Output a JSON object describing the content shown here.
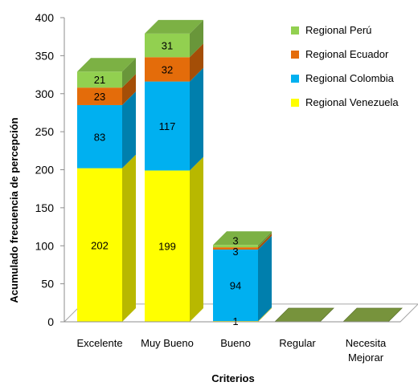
{
  "chart_data": {
    "type": "bar",
    "stacked": true,
    "three_d": true,
    "categories": [
      "Excelente",
      "Muy Bueno",
      "Bueno",
      "Regular",
      "Necesita Mejorar"
    ],
    "series": [
      {
        "name": "Regional Venezuela",
        "values": [
          202,
          199,
          1,
          0,
          0
        ],
        "color": "#FFFF00"
      },
      {
        "name": "Regional Colombia",
        "values": [
          83,
          117,
          94,
          0,
          0
        ],
        "color": "#00B0F0"
      },
      {
        "name": "Regional Ecuador",
        "values": [
          23,
          32,
          3,
          0,
          0
        ],
        "color": "#E46C0A"
      },
      {
        "name": "Regional Perú",
        "values": [
          21,
          31,
          3,
          0,
          0
        ],
        "color": "#92D050"
      }
    ],
    "xlabel": "Criterios",
    "ylabel": "Acumulado frecuencia de percepción",
    "ylim": [
      0,
      400
    ],
    "yticks": [
      0,
      50,
      100,
      150,
      200,
      250,
      300,
      350,
      400
    ],
    "grid": false,
    "legend_position": "top-right",
    "floor_color": "#77933C"
  }
}
